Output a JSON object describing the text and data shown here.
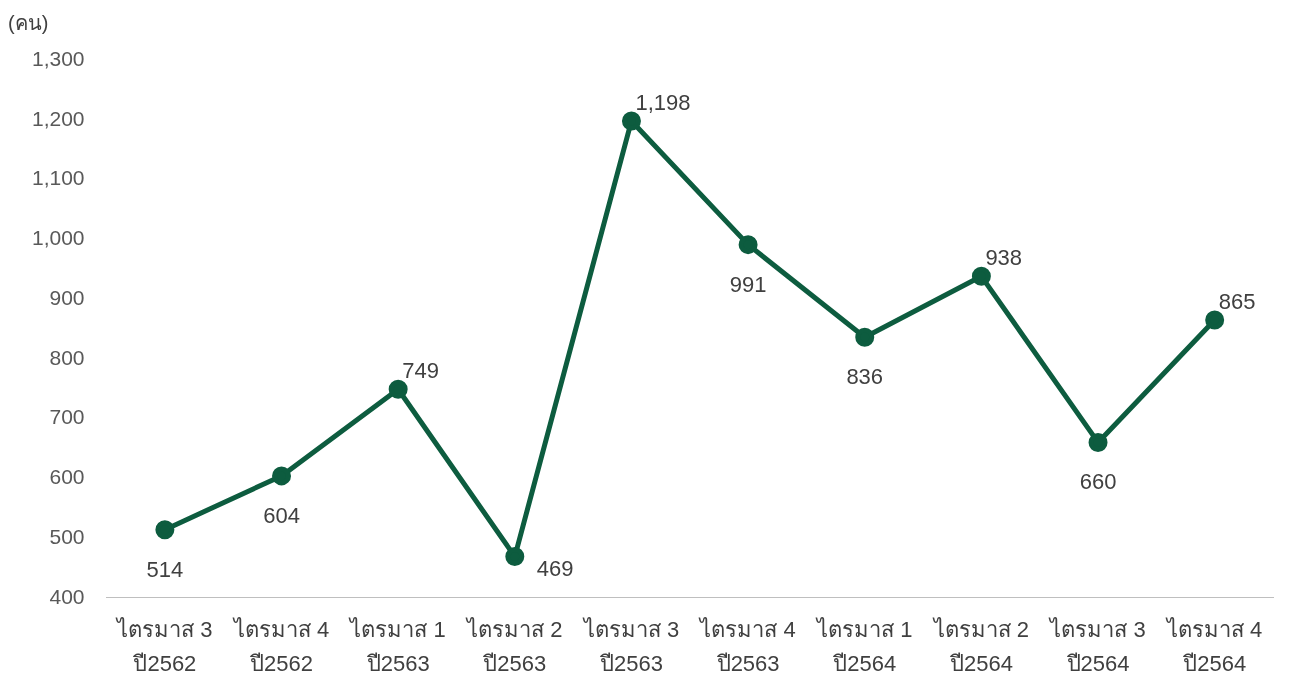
{
  "chart_data": {
    "type": "line",
    "ylabel": "(คน)",
    "categories": [
      "ไตรมาส 3\nปี2562",
      "ไตรมาส 4\nปี2562",
      "ไตรมาส 1\nปี2563",
      "ไตรมาส 2\nปี2563",
      "ไตรมาส 3\nปี2563",
      "ไตรมาส 4\nปี2563",
      "ไตรมาส 1\nปี2564",
      "ไตรมาส 2\nปี2564",
      "ไตรมาส 3\nปี2564",
      "ไตรมาส 4\nปี2564"
    ],
    "series": [
      {
        "color": "#0d5c3f",
        "values": [
          514,
          604,
          749,
          469,
          1198,
          991,
          836,
          938,
          660,
          865
        ],
        "value_labels": [
          "514",
          "604",
          "749",
          "469",
          "1,198",
          "991",
          "836",
          "938",
          "660",
          "865"
        ]
      }
    ],
    "ylim": [
      400,
      1300
    ],
    "yticks": [
      400,
      500,
      600,
      700,
      800,
      900,
      {
        "value": 1000,
        "label": "1,000"
      },
      {
        "value": 1100,
        "label": "1,100"
      },
      {
        "value": 1200,
        "label": "1,200"
      },
      {
        "value": 1300,
        "label": "1,300"
      }
    ],
    "grid": false,
    "legend": false,
    "marker": "circle",
    "line_style": "solid"
  }
}
